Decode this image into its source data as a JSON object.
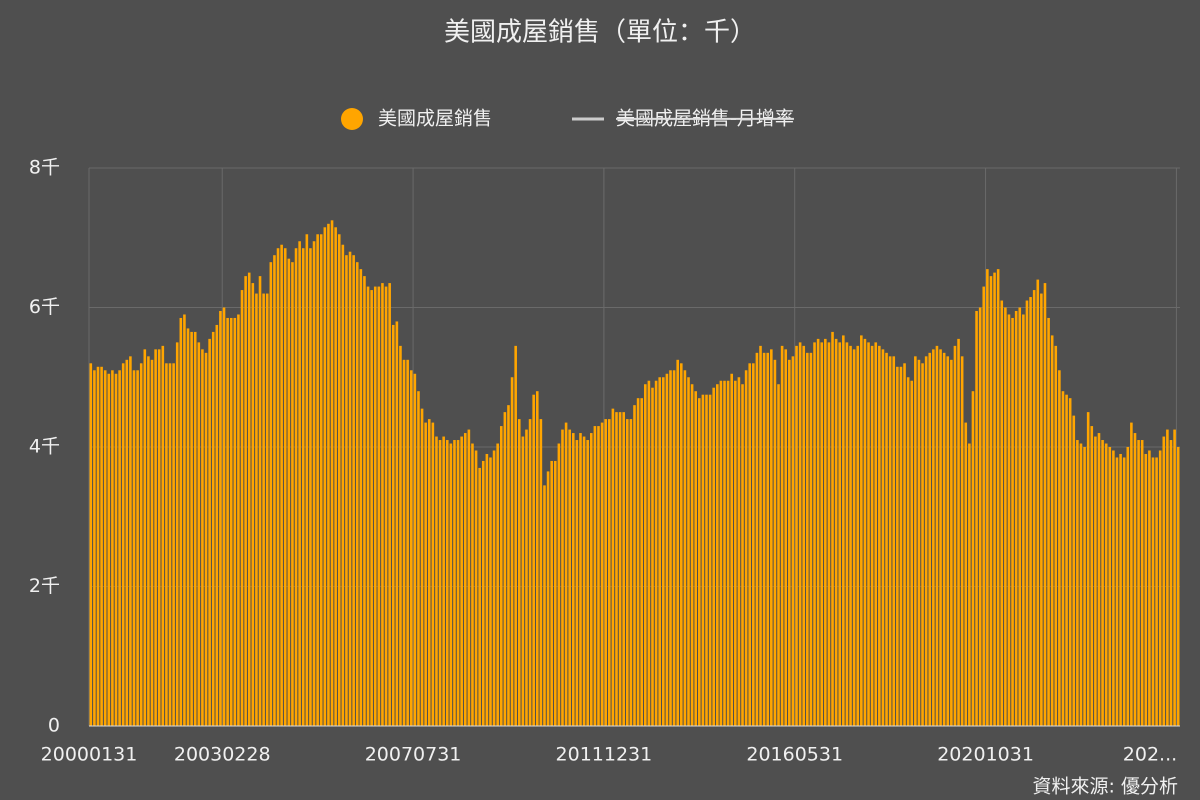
{
  "chart_data": {
    "type": "bar",
    "title": "美國成屋銷售（單位：千）",
    "source": "資料來源: 優分析",
    "categories": [
      "20000131",
      null,
      null,
      null,
      null,
      null,
      null,
      null,
      null,
      null,
      null,
      null,
      null,
      null,
      null,
      null,
      null,
      null,
      null,
      null,
      null,
      null,
      null,
      null,
      null,
      null,
      null,
      null,
      null,
      null,
      null,
      null,
      null,
      null,
      null,
      null,
      null,
      "20030228",
      null,
      null,
      null,
      null,
      null,
      null,
      null,
      null,
      null,
      null,
      null,
      null,
      null,
      null,
      null,
      null,
      null,
      null,
      null,
      null,
      null,
      null,
      null,
      null,
      null,
      null,
      null,
      null,
      null,
      null,
      null,
      null,
      null,
      null,
      null,
      null,
      null,
      null,
      null,
      null,
      null,
      null,
      null,
      null,
      null,
      null,
      null,
      null,
      null,
      null,
      null,
      null,
      "20070731",
      null,
      null,
      null,
      null,
      null,
      null,
      null,
      null,
      null,
      null,
      null,
      null,
      null,
      null,
      null,
      null,
      null,
      null,
      null,
      null,
      null,
      null,
      null,
      null,
      null,
      null,
      null,
      null,
      null,
      null,
      null,
      null,
      null,
      null,
      null,
      null,
      null,
      null,
      null,
      null,
      null,
      null,
      null,
      null,
      null,
      null,
      null,
      null,
      null,
      null,
      null,
      null,
      "20111231",
      null,
      null,
      null,
      null,
      null,
      null,
      null,
      null,
      null,
      null,
      null,
      null,
      null,
      null,
      null,
      null,
      null,
      null,
      null,
      null,
      null,
      null,
      null,
      null,
      null,
      null,
      null,
      null,
      null,
      null,
      null,
      null,
      null,
      null,
      null,
      null,
      null,
      null,
      null,
      null,
      null,
      null,
      null,
      null,
      null,
      null,
      null,
      null,
      null,
      null,
      null,
      null,
      "20160531",
      null,
      null,
      null,
      null,
      null,
      null,
      null,
      null,
      null,
      null,
      null,
      null,
      null,
      null,
      null,
      null,
      null,
      null,
      null,
      null,
      null,
      null,
      null,
      null,
      null,
      null,
      null,
      null,
      null,
      null,
      null,
      null,
      null,
      null,
      null,
      null,
      null,
      null,
      null,
      null,
      null,
      null,
      null,
      null,
      null,
      null,
      null,
      null,
      null,
      null,
      null,
      null,
      "20201031",
      null,
      null,
      null,
      null,
      null,
      null,
      null,
      null,
      null,
      null,
      null,
      null,
      null,
      null,
      null,
      null,
      null,
      null,
      null,
      null,
      null,
      null,
      null,
      null,
      null,
      null,
      null,
      null,
      null,
      null,
      null,
      null,
      null,
      null,
      null,
      null,
      null,
      null,
      null,
      null,
      null,
      null,
      null,
      null,
      null,
      null,
      null,
      null,
      null,
      null,
      null,
      null,
      "202..."
    ],
    "series": [
      {
        "name": "美國成屋銷售",
        "color": "#ffa500",
        "values": [
          5.2,
          5.1,
          5.15,
          5.15,
          5.1,
          5.05,
          5.1,
          5.05,
          5.1,
          5.2,
          5.25,
          5.3,
          5.1,
          5.1,
          5.2,
          5.4,
          5.3,
          5.25,
          5.4,
          5.4,
          5.45,
          5.2,
          5.2,
          5.2,
          5.5,
          5.85,
          5.9,
          5.7,
          5.65,
          5.65,
          5.5,
          5.4,
          5.35,
          5.55,
          5.65,
          5.75,
          5.95,
          6.0,
          5.85,
          5.85,
          5.85,
          5.9,
          6.25,
          6.45,
          6.5,
          6.35,
          6.2,
          6.45,
          6.2,
          6.2,
          6.65,
          6.75,
          6.85,
          6.9,
          6.85,
          6.7,
          6.65,
          6.85,
          6.95,
          6.85,
          7.05,
          6.85,
          6.95,
          7.05,
          7.05,
          7.15,
          7.2,
          7.25,
          7.15,
          7.05,
          6.9,
          6.75,
          6.8,
          6.75,
          6.65,
          6.55,
          6.45,
          6.3,
          6.25,
          6.3,
          6.3,
          6.35,
          6.3,
          6.35,
          5.75,
          5.8,
          5.45,
          5.25,
          5.25,
          5.1,
          5.05,
          4.8,
          4.55,
          4.35,
          4.4,
          4.35,
          4.15,
          4.1,
          4.15,
          4.1,
          4.05,
          4.1,
          4.1,
          4.15,
          4.2,
          4.25,
          4.05,
          3.95,
          3.7,
          3.8,
          3.9,
          3.85,
          3.95,
          4.05,
          4.3,
          4.5,
          4.6,
          5.0,
          5.45,
          4.4,
          4.15,
          4.25,
          4.4,
          4.75,
          4.8,
          4.4,
          3.45,
          3.65,
          3.8,
          3.8,
          4.05,
          4.25,
          4.35,
          4.25,
          4.2,
          4.1,
          4.2,
          4.15,
          4.1,
          4.2,
          4.3,
          4.3,
          4.35,
          4.4,
          4.4,
          4.55,
          4.5,
          4.5,
          4.5,
          4.4,
          4.4,
          4.6,
          4.7,
          4.7,
          4.9,
          4.95,
          4.85,
          4.95,
          5.0,
          5.0,
          5.05,
          5.1,
          5.1,
          5.25,
          5.2,
          5.1,
          5.0,
          4.9,
          4.8,
          4.7,
          4.75,
          4.75,
          4.75,
          4.85,
          4.9,
          4.95,
          4.95,
          4.95,
          5.05,
          4.95,
          5.0,
          4.9,
          5.1,
          5.2,
          5.2,
          5.35,
          5.45,
          5.35,
          5.35,
          5.4,
          5.25,
          4.9,
          5.45,
          5.4,
          5.25,
          5.3,
          5.45,
          5.5,
          5.45,
          5.35,
          5.35,
          5.5,
          5.55,
          5.5,
          5.55,
          5.5,
          5.65,
          5.55,
          5.5,
          5.6,
          5.5,
          5.45,
          5.4,
          5.45,
          5.6,
          5.55,
          5.5,
          5.45,
          5.5,
          5.45,
          5.4,
          5.35,
          5.3,
          5.3,
          5.15,
          5.15,
          5.2,
          5.0,
          4.95,
          5.3,
          5.25,
          5.2,
          5.3,
          5.35,
          5.4,
          5.45,
          5.4,
          5.35,
          5.3,
          5.25,
          5.45,
          5.55,
          5.3,
          4.35,
          4.05,
          4.8,
          5.95,
          6.0,
          6.3,
          6.55,
          6.45,
          6.5,
          6.55,
          6.1,
          6.0,
          5.9,
          5.85,
          5.95,
          6.0,
          5.9,
          6.1,
          6.15,
          6.25,
          6.4,
          6.2,
          6.35,
          5.85,
          5.6,
          5.45,
          5.1,
          4.8,
          4.75,
          4.7,
          4.45,
          4.1,
          4.05,
          4.0,
          4.5,
          4.3,
          4.15,
          4.2,
          4.1,
          4.05,
          4.0,
          3.95,
          3.85,
          3.9,
          3.85,
          4.0,
          4.35,
          4.2,
          4.1,
          4.1,
          3.9,
          3.95,
          3.85,
          3.85,
          3.95,
          4.15,
          4.25,
          4.1,
          4.25,
          4.0
        ]
      },
      {
        "name": "美國成屋銷售-月增率",
        "color": "#cccccc",
        "hidden": true
      }
    ],
    "ylim": [
      0,
      8
    ],
    "yticks": [
      0,
      {
        "value": 2,
        "label": "2千"
      },
      {
        "value": 4,
        "label": "4千"
      },
      {
        "value": 6,
        "label": "6千"
      },
      {
        "value": 8,
        "label": "8千"
      }
    ],
    "grid": true
  }
}
